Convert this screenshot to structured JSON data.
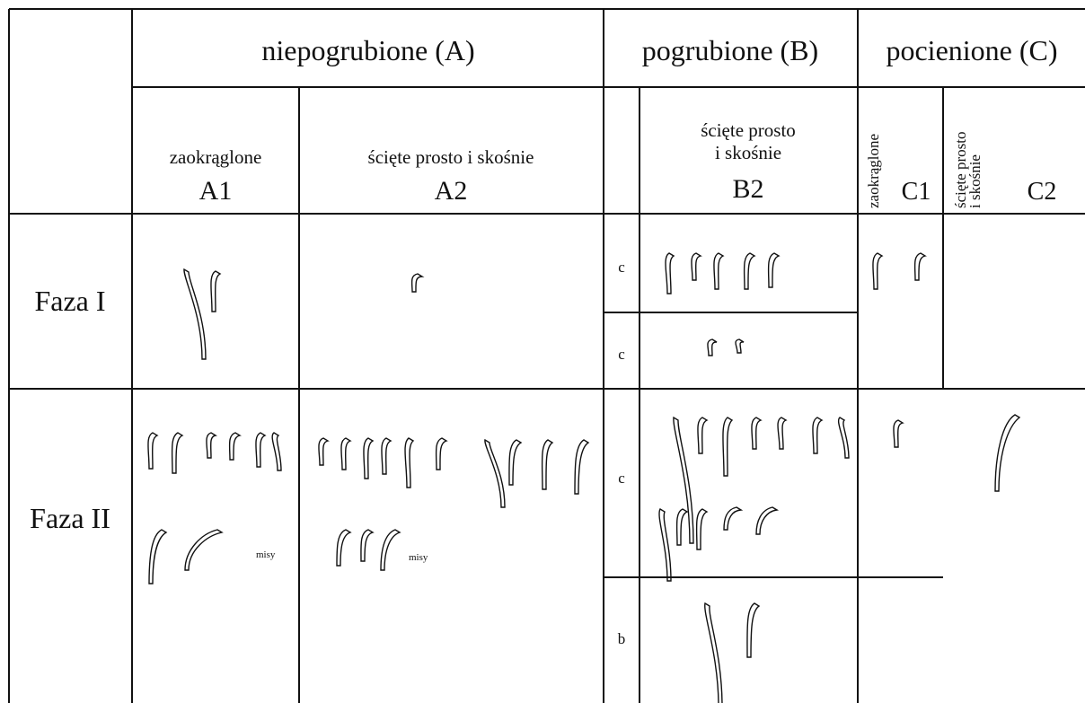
{
  "header": {
    "groups": [
      "niepogrubione (A)",
      "pogrubione (B)",
      "pocienione (C)"
    ],
    "subgroups": [
      {
        "label": [
          "zaokrąglone"
        ],
        "code": "A1"
      },
      {
        "label": [
          "ścięte prosto i skośnie"
        ],
        "code": "A2"
      },
      {
        "label": [
          "ścięte prosto",
          "i skośnie"
        ],
        "code": "B2"
      },
      {
        "label": [
          "zaokrąglone"
        ],
        "code": "C1"
      },
      {
        "label": [
          "ścięte prosto",
          "i skośnie"
        ],
        "code": "C2"
      }
    ]
  },
  "rows": [
    {
      "label": "Faza I",
      "subrows": [
        "c",
        "c"
      ]
    },
    {
      "label": "Faza II",
      "subrows": [
        "c",
        "b"
      ]
    }
  ],
  "annotations": [
    "misy",
    "misy"
  ]
}
